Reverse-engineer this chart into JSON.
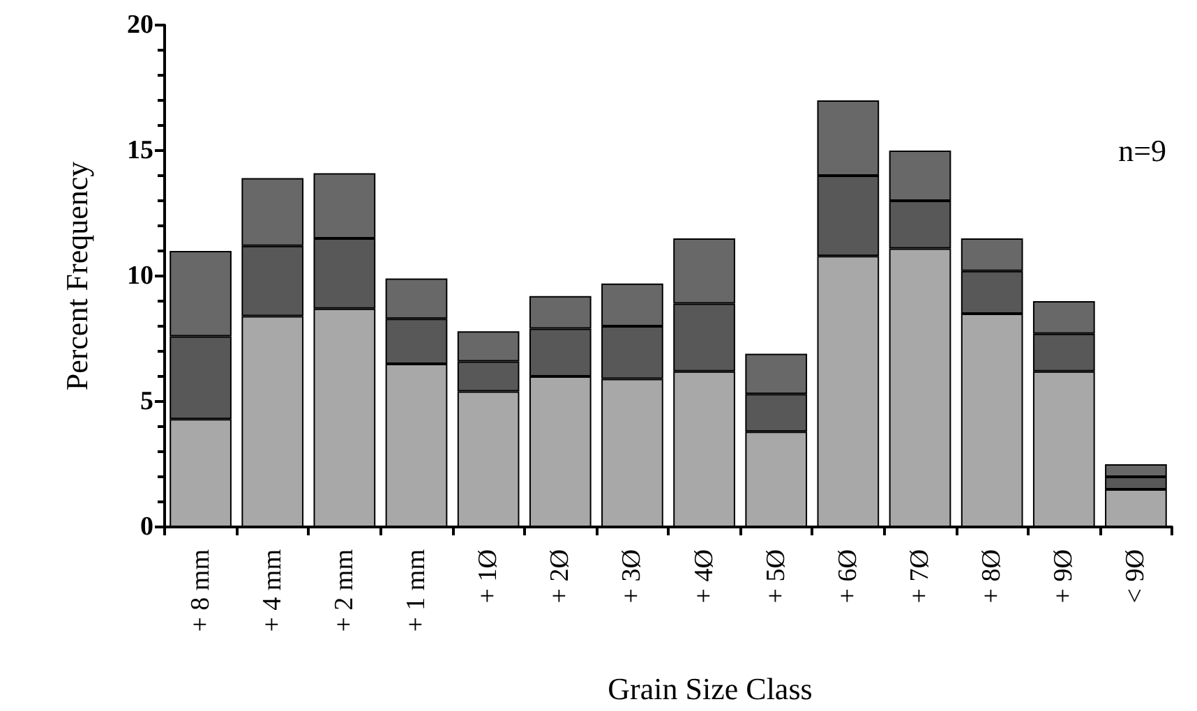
{
  "chart_data": {
    "type": "bar",
    "stacked": true,
    "xlabel": "Grain Size Class",
    "ylabel": "Percent Frequency",
    "categories": [
      "+ 8 mm",
      "+ 4 mm",
      "+ 2 mm",
      "+ 1 mm",
      "+ 1Ø",
      "+ 2Ø",
      "+ 3Ø",
      "+ 4Ø",
      "+ 5Ø",
      "+ 6Ø",
      "+ 7Ø",
      "+ 8Ø",
      "+ 9Ø",
      "< 9Ø"
    ],
    "series": [
      {
        "color": "#a8a8a8",
        "values": [
          4.3,
          8.4,
          8.7,
          6.5,
          5.4,
          6.0,
          5.9,
          6.2,
          3.8,
          10.8,
          11.1,
          8.5,
          6.2,
          1.5
        ]
      },
      {
        "color": "#585858",
        "values": [
          3.3,
          2.8,
          2.8,
          1.8,
          1.2,
          1.9,
          2.1,
          2.7,
          1.5,
          3.2,
          1.9,
          1.7,
          1.5,
          0.5
        ]
      },
      {
        "color": "#686868",
        "values": [
          3.4,
          2.7,
          2.6,
          1.6,
          1.2,
          1.3,
          1.7,
          2.6,
          1.6,
          3.0,
          2.0,
          1.3,
          1.3,
          0.5
        ]
      }
    ],
    "ylim": [
      0,
      20
    ],
    "yticks": [
      0,
      5,
      10,
      15,
      20
    ],
    "grid": false,
    "annotations": [
      "n=9"
    ]
  }
}
